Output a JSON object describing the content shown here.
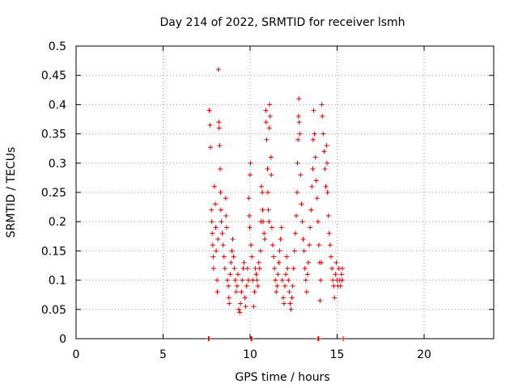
{
  "chart_data": {
    "type": "scatter",
    "title": "Day 214 of 2022, SRMTID for receiver lsmh",
    "xlabel": "GPS time / hours",
    "ylabel": "SRMTID / TECUs",
    "xlim": [
      0,
      24
    ],
    "ylim": [
      0,
      0.5
    ],
    "x_ticks": [
      0,
      5,
      10,
      15,
      20
    ],
    "x_tick_labels": [
      "0",
      "5",
      "10",
      "15",
      "20"
    ],
    "y_ticks": [
      0,
      0.05,
      0.1,
      0.15,
      0.2,
      0.25,
      0.3,
      0.35,
      0.4,
      0.45,
      0.5
    ],
    "y_tick_labels": [
      "0",
      "0.05",
      "0.1",
      "0.15",
      "0.2",
      "0.25",
      "0.3",
      "0.35",
      "0.4",
      "0.45",
      "0.5"
    ],
    "grid": true,
    "marker": "plus",
    "marker_color": "#dd0000",
    "series": [
      {
        "name": "SRMTID",
        "color": "#dd0000",
        "points": [
          [
            7.65,
            0.39
          ],
          [
            7.7,
            0.365
          ],
          [
            7.72,
            0.327
          ],
          [
            7.78,
            0.22
          ],
          [
            7.8,
            0.2
          ],
          [
            7.82,
            0.18
          ],
          [
            7.85,
            0.16
          ],
          [
            7.88,
            0.14
          ],
          [
            7.9,
            0.12
          ],
          [
            7.95,
            0.26
          ],
          [
            8.0,
            0.23
          ],
          [
            8.02,
            0.19
          ],
          [
            8.05,
            0.15
          ],
          [
            8.1,
            0.1
          ],
          [
            8.12,
            0.08
          ],
          [
            8.15,
            0.17
          ],
          [
            8.18,
            0.46
          ],
          [
            8.2,
            0.37
          ],
          [
            8.22,
            0.36
          ],
          [
            8.25,
            0.33
          ],
          [
            8.28,
            0.29
          ],
          [
            8.3,
            0.25
          ],
          [
            8.32,
            0.22
          ],
          [
            8.35,
            0.2
          ],
          [
            8.4,
            0.18
          ],
          [
            8.45,
            0.16
          ],
          [
            8.5,
            0.14
          ],
          [
            8.55,
            0.12
          ],
          [
            8.6,
            0.24
          ],
          [
            8.62,
            0.21
          ],
          [
            8.65,
            0.19
          ],
          [
            8.7,
            0.1
          ],
          [
            8.75,
            0.09
          ],
          [
            8.78,
            0.07
          ],
          [
            8.8,
            0.06
          ],
          [
            8.85,
            0.11
          ],
          [
            8.9,
            0.13
          ],
          [
            8.95,
            0.15
          ],
          [
            9.0,
            0.17
          ],
          [
            9.05,
            0.14
          ],
          [
            9.1,
            0.12
          ],
          [
            9.15,
            0.1
          ],
          [
            9.2,
            0.08
          ],
          [
            9.25,
            0.09
          ],
          [
            9.3,
            0.11
          ],
          [
            9.35,
            0.05
          ],
          [
            9.4,
            0.045
          ],
          [
            9.45,
            0.06
          ],
          [
            9.5,
            0.08
          ],
          [
            9.55,
            0.1
          ],
          [
            9.6,
            0.12
          ],
          [
            9.65,
            0.13
          ],
          [
            9.7,
            0.07
          ],
          [
            9.75,
            0.055
          ],
          [
            9.8,
            0.09
          ],
          [
            9.85,
            0.12
          ],
          [
            9.9,
            0.1
          ],
          [
            9.92,
            0.24
          ],
          [
            9.95,
            0.21
          ],
          [
            9.98,
            0.19
          ],
          [
            10.0,
            0.28
          ],
          [
            10.02,
            0.3
          ],
          [
            10.05,
            0.16
          ],
          [
            10.1,
            0.14
          ],
          [
            10.15,
            0.1
          ],
          [
            10.2,
            0.055
          ],
          [
            10.25,
            0.08
          ],
          [
            10.3,
            0.12
          ],
          [
            10.35,
            0.11
          ],
          [
            10.4,
            0.1
          ],
          [
            10.45,
            0.09
          ],
          [
            10.5,
            0.13
          ],
          [
            10.55,
            0.12
          ],
          [
            10.6,
            0.15
          ],
          [
            10.62,
            0.2
          ],
          [
            10.65,
            0.26
          ],
          [
            10.7,
            0.25
          ],
          [
            10.72,
            0.22
          ],
          [
            10.75,
            0.2
          ],
          [
            10.8,
            0.18
          ],
          [
            10.85,
            0.17
          ],
          [
            10.9,
            0.39
          ],
          [
            10.92,
            0.37
          ],
          [
            10.95,
            0.34
          ],
          [
            11.0,
            0.29
          ],
          [
            11.02,
            0.25
          ],
          [
            11.05,
            0.22
          ],
          [
            11.08,
            0.2
          ],
          [
            11.1,
            0.36
          ],
          [
            11.12,
            0.4
          ],
          [
            11.15,
            0.38
          ],
          [
            11.2,
            0.31
          ],
          [
            11.22,
            0.28
          ],
          [
            11.25,
            0.19
          ],
          [
            11.3,
            0.16
          ],
          [
            11.35,
            0.14
          ],
          [
            11.4,
            0.12
          ],
          [
            11.45,
            0.1
          ],
          [
            11.5,
            0.08
          ],
          [
            11.55,
            0.09
          ],
          [
            11.6,
            0.11
          ],
          [
            11.65,
            0.13
          ],
          [
            11.7,
            0.15
          ],
          [
            11.75,
            0.17
          ],
          [
            11.8,
            0.19
          ],
          [
            11.85,
            0.1
          ],
          [
            11.9,
            0.07
          ],
          [
            11.95,
            0.06
          ],
          [
            12.0,
            0.09
          ],
          [
            12.05,
            0.11
          ],
          [
            12.1,
            0.14
          ],
          [
            12.15,
            0.12
          ],
          [
            12.2,
            0.1
          ],
          [
            12.25,
            0.08
          ],
          [
            12.3,
            0.06
          ],
          [
            12.35,
            0.05
          ],
          [
            12.4,
            0.07
          ],
          [
            12.45,
            0.09
          ],
          [
            12.5,
            0.12
          ],
          [
            12.55,
            0.15
          ],
          [
            12.6,
            0.18
          ],
          [
            12.65,
            0.21
          ],
          [
            12.7,
            0.25
          ],
          [
            12.72,
            0.3
          ],
          [
            12.75,
            0.34
          ],
          [
            12.78,
            0.38
          ],
          [
            12.8,
            0.41
          ],
          [
            12.82,
            0.37
          ],
          [
            12.85,
            0.35
          ],
          [
            12.9,
            0.28
          ],
          [
            12.95,
            0.23
          ],
          [
            13.0,
            0.2
          ],
          [
            13.05,
            0.17
          ],
          [
            13.1,
            0.15
          ],
          [
            13.15,
            0.12
          ],
          [
            13.2,
            0.1
          ],
          [
            13.25,
            0.08
          ],
          [
            13.3,
            0.11
          ],
          [
            13.35,
            0.13
          ],
          [
            13.4,
            0.16
          ],
          [
            13.45,
            0.19
          ],
          [
            13.5,
            0.22
          ],
          [
            13.55,
            0.26
          ],
          [
            13.6,
            0.29
          ],
          [
            13.62,
            0.34
          ],
          [
            13.65,
            0.39
          ],
          [
            13.7,
            0.35
          ],
          [
            13.75,
            0.31
          ],
          [
            13.8,
            0.27
          ],
          [
            13.85,
            0.24
          ],
          [
            13.9,
            0.2
          ],
          [
            13.95,
            0.16
          ],
          [
            14.0,
            0.13
          ],
          [
            14.02,
            0.065
          ],
          [
            14.05,
            0.1
          ],
          [
            14.1,
            0.13
          ],
          [
            14.12,
            0.4
          ],
          [
            14.15,
            0.38
          ],
          [
            14.2,
            0.35
          ],
          [
            14.25,
            0.32
          ],
          [
            14.3,
            0.29
          ],
          [
            14.35,
            0.26
          ],
          [
            14.4,
            0.33
          ],
          [
            14.42,
            0.3
          ],
          [
            14.45,
            0.25
          ],
          [
            14.5,
            0.21
          ],
          [
            14.55,
            0.18
          ],
          [
            14.6,
            0.16
          ],
          [
            14.65,
            0.14
          ],
          [
            14.7,
            0.12
          ],
          [
            14.75,
            0.1
          ],
          [
            14.8,
            0.09
          ],
          [
            14.85,
            0.07
          ],
          [
            14.9,
            0.11
          ],
          [
            14.95,
            0.13
          ],
          [
            15.0,
            0.1
          ],
          [
            15.05,
            0.09
          ],
          [
            15.1,
            0.12
          ],
          [
            15.15,
            0.1
          ],
          [
            15.2,
            0.09
          ],
          [
            15.25,
            0.11
          ],
          [
            15.28,
            0.1
          ],
          [
            15.3,
            0.12
          ],
          [
            7.6,
            0.0
          ],
          [
            7.62,
            0.0
          ],
          [
            7.64,
            0.0
          ],
          [
            10.05,
            0.0
          ],
          [
            10.08,
            0.0
          ],
          [
            10.1,
            0.0
          ],
          [
            13.9,
            0.0
          ],
          [
            13.92,
            0.0
          ],
          [
            13.95,
            0.0
          ],
          [
            15.35,
            0.0
          ]
        ]
      }
    ]
  }
}
